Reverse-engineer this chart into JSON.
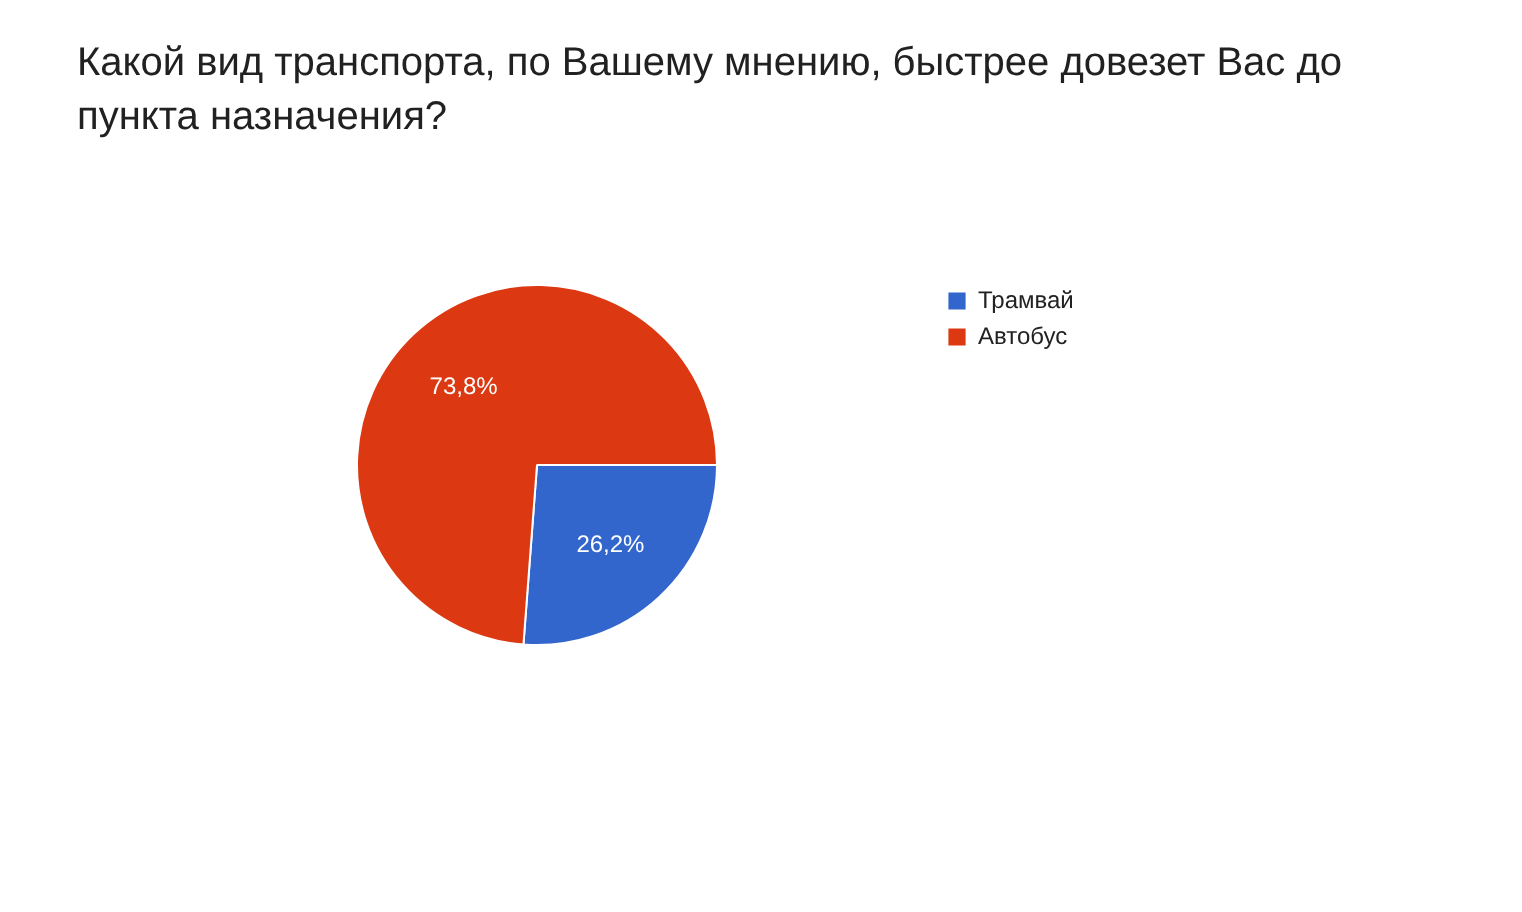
{
  "chart_data": {
    "type": "pie",
    "title": "Какой вид транспорта, по Вашему мнению, быстрее довезет Вас до пункта назначения?",
    "categories": [
      "Трамвай",
      "Автобус"
    ],
    "values": [
      26.2,
      73.8
    ],
    "colors": [
      "#3366cc",
      "#dc3912"
    ],
    "value_labels": [
      "26,2%",
      "73,8%"
    ],
    "legend": "top right"
  }
}
